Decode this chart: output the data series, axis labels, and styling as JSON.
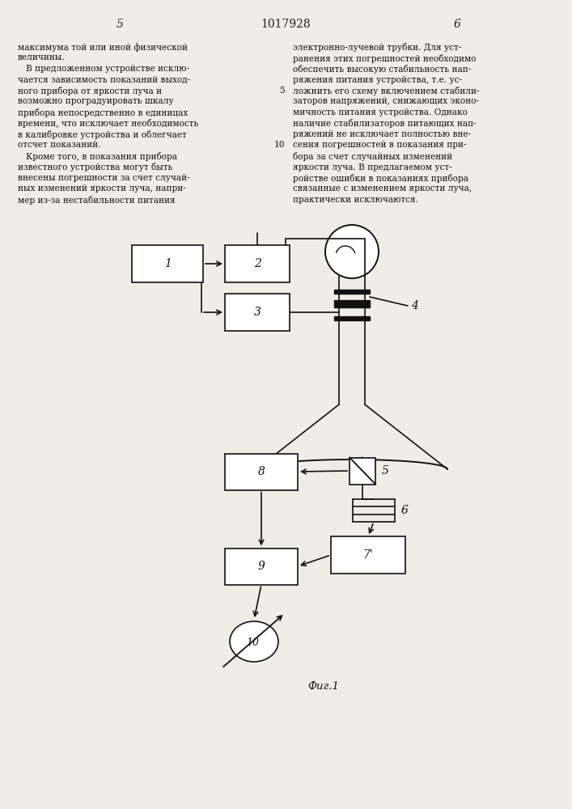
{
  "page_width": 7.07,
  "page_height": 10.0,
  "bg_color": "#f0ede6",
  "header_number": "1017928",
  "col_left_number": "5",
  "col_right_number": "6",
  "text_left": [
    "максимума той или иной физической",
    "величины.",
    "   В предложенном устройстве исклю-",
    "чается зависимость показаний выход-",
    "ного прибора от яркости луча и",
    "возможно проградуировать шкалу",
    "прибора непосредственно в единицах",
    "времени, что исключает необходимость",
    "в калибровке устройства и облегчает",
    "отсчет показаний.",
    "   Кроме того, в показания прибора",
    "известного устройства могут быть",
    "внесены погрешности за счет случай-",
    "ных изменений яркости луча, напри-",
    "мер из-за нестабильности питания"
  ],
  "text_right": [
    "электронно-лучевой трубки. Для уст-",
    "ранения этих погрешностей необходимо",
    "обеспечить высокую стабильность нап-",
    "ряжения питания устройства, т.е. ус-",
    "ложнить его схему включением стабили-",
    "заторов напряжений, снижающих эконо-",
    "мичность питания устройства. Однако",
    "наличие стабилизаторов питающих нап-",
    "ряжений не исключает полностью вне-",
    "сения погрешностей в показания при-",
    "бора за счет случайных изменений",
    "яркости луча. В предлагаемом уст-",
    "ройстве ошибки в показаниях прибора",
    "связанные с изменением яркости луча,",
    "практически исключаются."
  ],
  "fig_label": "Фиг.1",
  "line_num_5_row": 4,
  "line_num_10_row": 9
}
